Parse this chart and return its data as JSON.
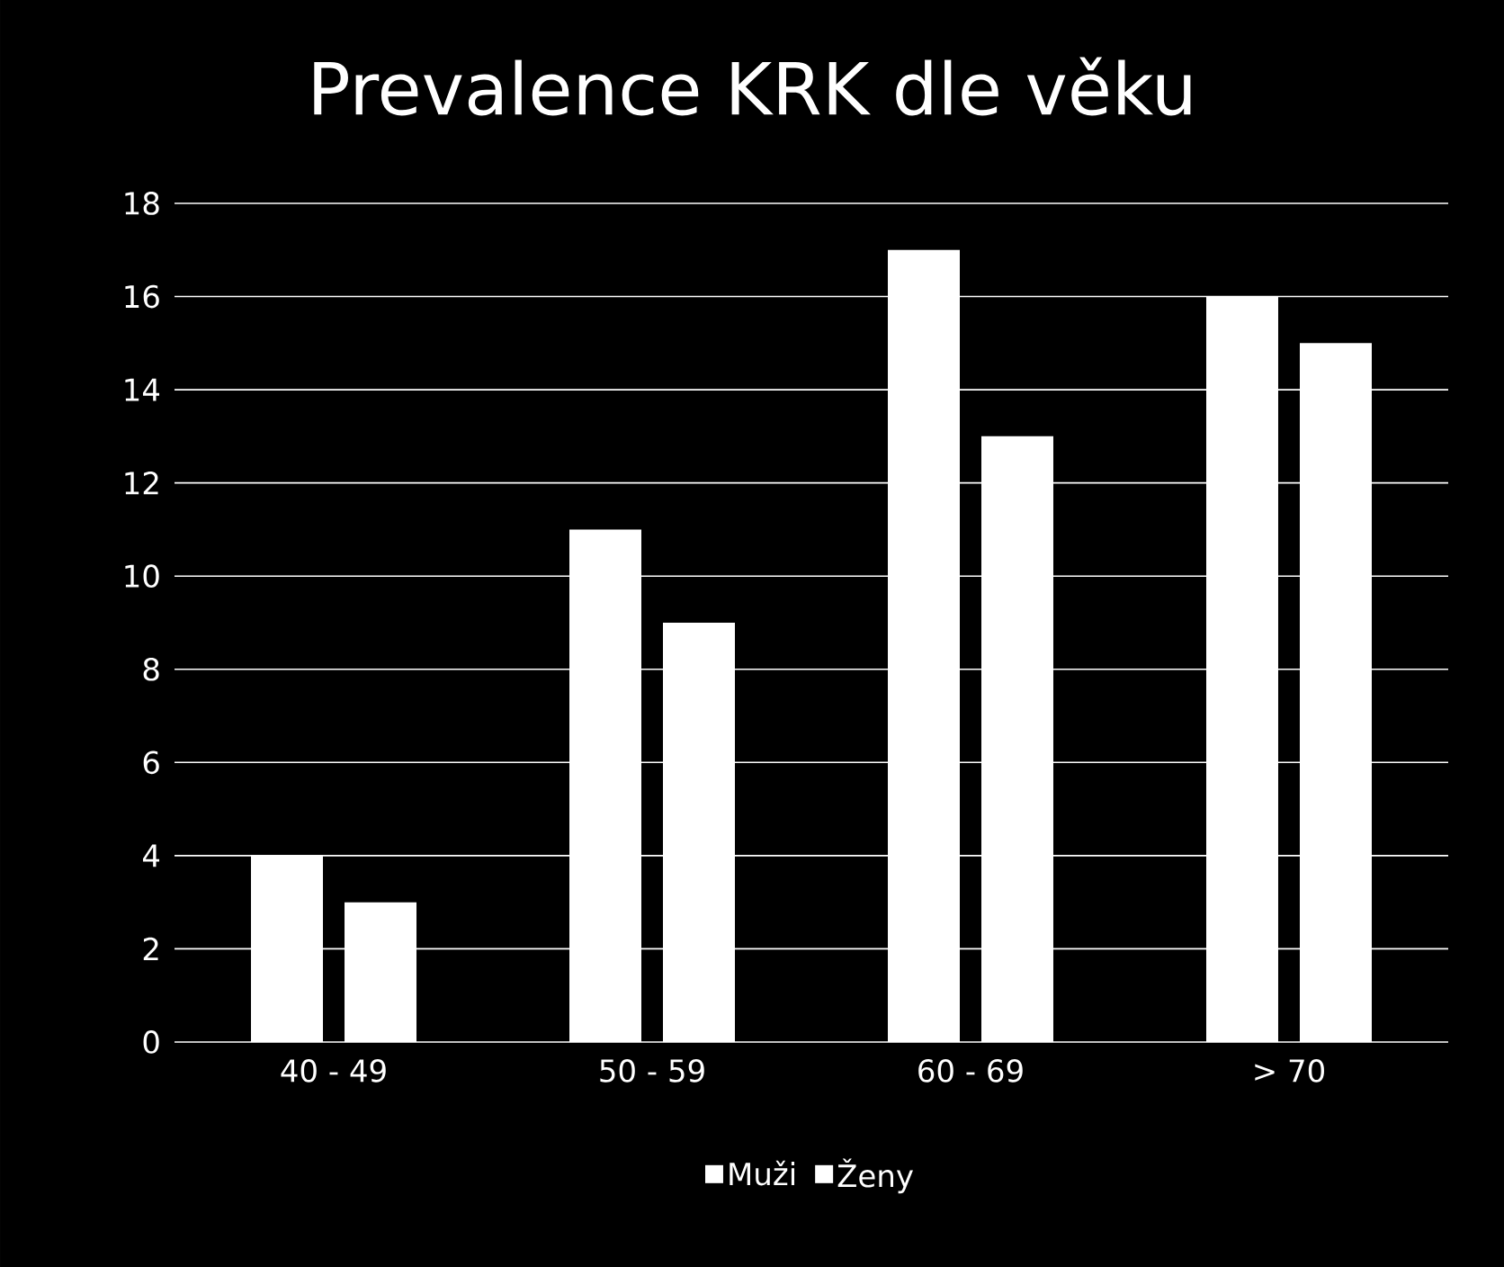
{
  "chart_data": {
    "type": "bar",
    "title": "Prevalence KRK dle věku",
    "categories": [
      "40 - 49",
      "50 - 59",
      "60 - 69",
      "> 70"
    ],
    "series": [
      {
        "name": "Muži",
        "color": "#ffffff",
        "values": [
          4,
          11,
          17,
          16
        ]
      },
      {
        "name": "Ženy",
        "color": "#ffffff",
        "values": [
          3,
          9,
          13,
          15
        ]
      }
    ],
    "ylim": [
      0,
      18
    ],
    "yticks": [
      0,
      2,
      4,
      6,
      8,
      10,
      12,
      14,
      16,
      18
    ],
    "grid": "y",
    "legend": "bottom"
  }
}
